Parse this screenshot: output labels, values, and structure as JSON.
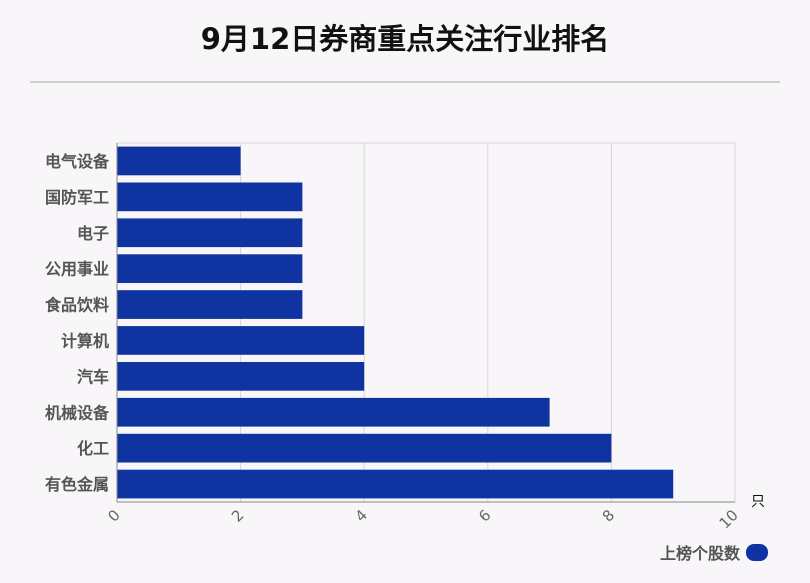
{
  "chart_data": {
    "type": "bar",
    "orientation": "horizontal",
    "title": "9月12日券商重点关注行业排名",
    "categories": [
      "电气设备",
      "国防军工",
      "电子",
      "公用事业",
      "食品饮料",
      "计算机",
      "汽车",
      "机械设备",
      "化工",
      "有色金属"
    ],
    "series": [
      {
        "name": "上榜个股数",
        "values": [
          2,
          3,
          3,
          3,
          3,
          4,
          4,
          7,
          8,
          9
        ]
      }
    ],
    "xlim": [
      0,
      10
    ],
    "xticks": [
      0,
      2,
      4,
      6,
      8,
      10
    ],
    "x_unit": "只",
    "grid": true,
    "legend_position": "bottom-right",
    "bar_color": "#0f33a0"
  }
}
